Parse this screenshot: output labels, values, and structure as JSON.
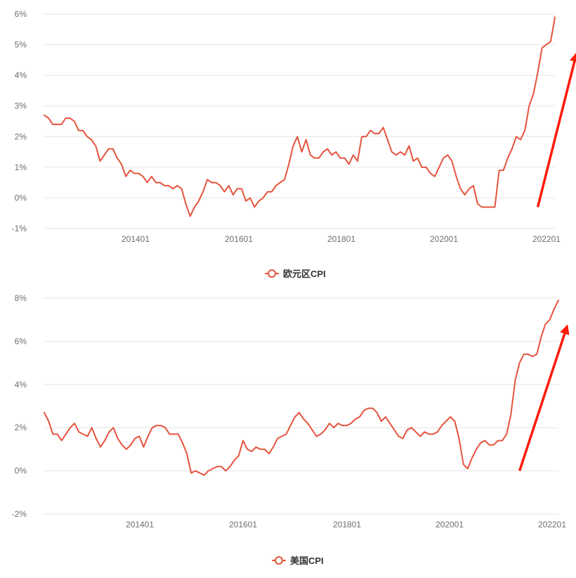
{
  "colors": {
    "series": "#e5533d",
    "arrow": "#ff1a0a",
    "grid": "#e6e6e6",
    "tick": "#6e6e6e"
  },
  "chart_data": [
    {
      "type": "line",
      "legend": "欧元区CPI",
      "legend_position": "bottom-center",
      "grid": true,
      "ylim": [
        -1,
        6
      ],
      "yticks": [
        "6%",
        "5%",
        "4%",
        "3%",
        "2%",
        "1%",
        "0%",
        "-1%"
      ],
      "ytick_values": [
        6,
        5,
        4,
        3,
        2,
        1,
        0,
        -1
      ],
      "xticks": [
        "201401",
        "201601",
        "201801",
        "202001",
        "202201"
      ],
      "series": [
        {
          "name": "欧元区CPI",
          "values": [
            2.7,
            2.6,
            2.4,
            2.4,
            2.4,
            2.6,
            2.6,
            2.5,
            2.2,
            2.2,
            2.0,
            1.9,
            1.7,
            1.2,
            1.4,
            1.6,
            1.6,
            1.3,
            1.1,
            0.7,
            0.9,
            0.8,
            0.8,
            0.7,
            0.5,
            0.7,
            0.5,
            0.5,
            0.4,
            0.4,
            0.3,
            0.4,
            0.3,
            -0.2,
            -0.6,
            -0.3,
            -0.1,
            0.2,
            0.6,
            0.5,
            0.5,
            0.4,
            0.2,
            0.4,
            0.1,
            0.3,
            0.3,
            -0.1,
            0.0,
            -0.3,
            -0.1,
            0.0,
            0.2,
            0.2,
            0.4,
            0.5,
            0.6,
            1.1,
            1.7,
            2.0,
            1.5,
            1.9,
            1.4,
            1.3,
            1.3,
            1.5,
            1.6,
            1.4,
            1.5,
            1.3,
            1.3,
            1.1,
            1.4,
            1.2,
            2.0,
            2.0,
            2.2,
            2.1,
            2.1,
            2.3,
            1.9,
            1.5,
            1.4,
            1.5,
            1.4,
            1.7,
            1.2,
            1.3,
            1.0,
            1.0,
            0.8,
            0.7,
            1.0,
            1.3,
            1.4,
            1.2,
            0.7,
            0.3,
            0.1,
            0.3,
            0.4,
            -0.2,
            -0.3,
            -0.3,
            -0.3,
            -0.3,
            0.9,
            0.9,
            1.3,
            1.6,
            2.0,
            1.9,
            2.2,
            3.0,
            3.4,
            4.1,
            4.9,
            5.0,
            5.1,
            5.9
          ]
        }
      ],
      "arrow": {
        "from": [
          115,
          -0.3
        ],
        "to": [
          124,
          4.7
        ]
      }
    },
    {
      "type": "line",
      "legend": "美国CPI",
      "legend_position": "bottom-center",
      "grid": true,
      "ylim": [
        -2,
        8
      ],
      "yticks": [
        "8%",
        "6%",
        "4%",
        "2%",
        "0%",
        "-2%"
      ],
      "ytick_values": [
        8,
        6,
        4,
        2,
        0,
        -2
      ],
      "xticks": [
        "201401",
        "201601",
        "201801",
        "202001",
        "202201"
      ],
      "series": [
        {
          "name": "美国CPI",
          "values": [
            2.7,
            2.3,
            1.7,
            1.7,
            1.4,
            1.7,
            2.0,
            2.2,
            1.8,
            1.7,
            1.6,
            2.0,
            1.5,
            1.1,
            1.4,
            1.8,
            2.0,
            1.5,
            1.2,
            1.0,
            1.2,
            1.5,
            1.6,
            1.1,
            1.6,
            2.0,
            2.1,
            2.1,
            2.0,
            1.7,
            1.7,
            1.7,
            1.3,
            0.8,
            -0.1,
            0.0,
            -0.1,
            -0.2,
            0.0,
            0.1,
            0.2,
            0.2,
            0.0,
            0.2,
            0.5,
            0.7,
            1.4,
            1.0,
            0.9,
            1.1,
            1.0,
            1.0,
            0.8,
            1.1,
            1.5,
            1.6,
            1.7,
            2.1,
            2.5,
            2.7,
            2.4,
            2.2,
            1.9,
            1.6,
            1.7,
            1.9,
            2.2,
            2.0,
            2.2,
            2.1,
            2.1,
            2.2,
            2.4,
            2.5,
            2.8,
            2.9,
            2.9,
            2.7,
            2.3,
            2.5,
            2.2,
            1.9,
            1.6,
            1.5,
            1.9,
            2.0,
            1.8,
            1.6,
            1.8,
            1.7,
            1.7,
            1.8,
            2.1,
            2.3,
            2.5,
            2.3,
            1.5,
            0.3,
            0.1,
            0.6,
            1.0,
            1.3,
            1.4,
            1.2,
            1.2,
            1.4,
            1.4,
            1.7,
            2.6,
            4.2,
            5.0,
            5.4,
            5.4,
            5.3,
            5.4,
            6.2,
            6.8,
            7.0,
            7.5,
            7.9
          ]
        }
      ],
      "arrow": {
        "from": [
          110,
          0.0
        ],
        "to": [
          121,
          6.7
        ]
      }
    }
  ]
}
